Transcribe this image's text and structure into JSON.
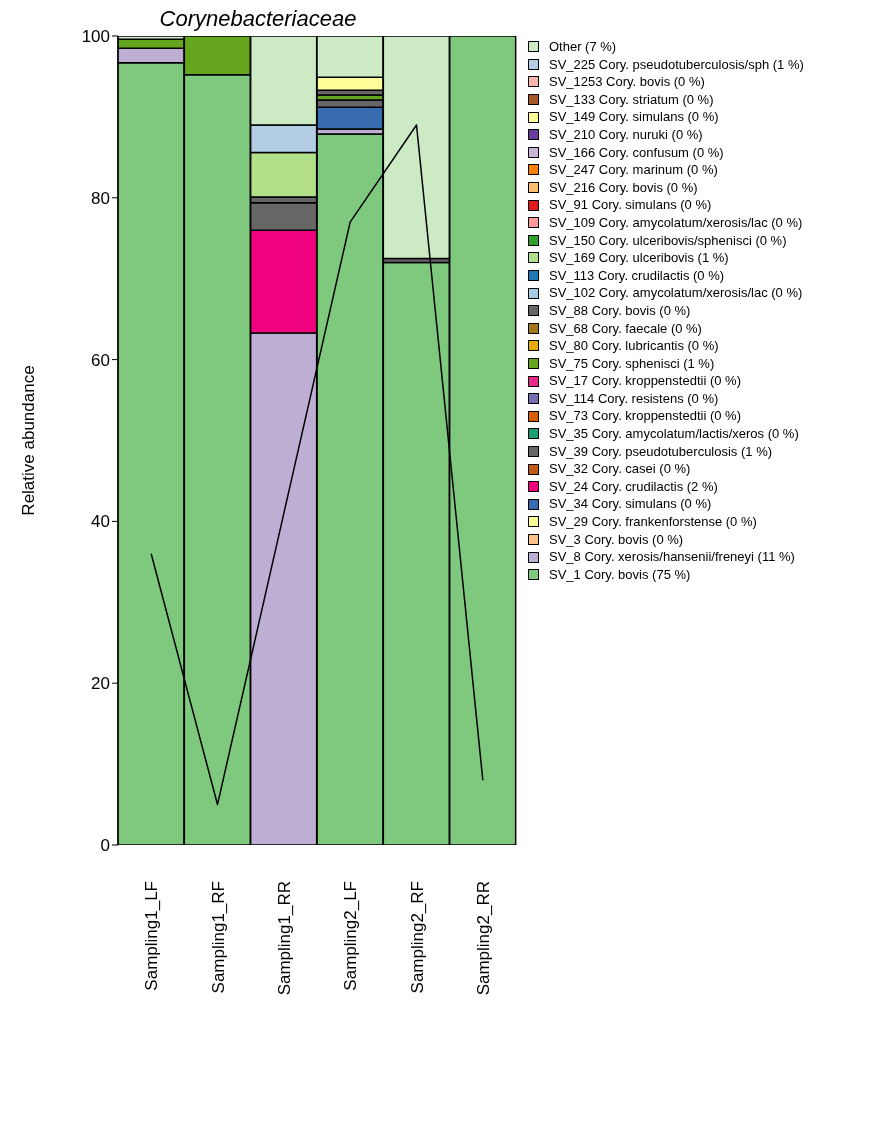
{
  "chart_data": {
    "type": "bar",
    "stacked": true,
    "title": "Corynebacteriaceae",
    "ylabel": "Relative abundance",
    "categories": [
      "Sampling1_LF",
      "Sampling1_RF",
      "Sampling1_RR",
      "Sampling2_LF",
      "Sampling2_RF",
      "Sampling2_RR"
    ],
    "ylim": [
      0,
      100
    ],
    "yticks": [
      0,
      20,
      40,
      60,
      80,
      100
    ],
    "grid": false,
    "legend": "top right",
    "series": [
      {
        "name": "SV_1 Cory. bovis (75 %)",
        "color": "#7fc97f",
        "values": [
          96.7,
          95.2,
          0,
          87.9,
          72.0,
          100
        ]
      },
      {
        "name": "SV_8 Cory. xerosis/hansenii/freneyi (11 %)",
        "color": "#beaed4",
        "values": [
          1.8,
          0,
          63.3,
          0.6,
          0,
          0
        ]
      },
      {
        "name": "SV_3 Cory. bovis (0 %)",
        "color": "#fdc086",
        "values": [
          0,
          0,
          0,
          0,
          0,
          0
        ]
      },
      {
        "name": "SV_29 Cory. frankenforstense (0 %)",
        "color": "#ffff99",
        "values": [
          0,
          0,
          0,
          0,
          0,
          0
        ]
      },
      {
        "name": "SV_34 Cory. simulans (0 %)",
        "color": "#386cb0",
        "values": [
          0,
          0,
          0,
          2.7,
          0,
          0
        ]
      },
      {
        "name": "SV_24 Cory. crudilactis (2 %)",
        "color": "#f0027f",
        "values": [
          0,
          0,
          12.7,
          0,
          0,
          0
        ]
      },
      {
        "name": "SV_32 Cory. casei (0 %)",
        "color": "#bf5b17",
        "values": [
          0,
          0,
          0,
          0,
          0,
          0
        ]
      },
      {
        "name": "SV_39 Cory. pseudotuberculosis (1 %)",
        "color": "#666666",
        "values": [
          0,
          0,
          3.4,
          0.9,
          0.5,
          0
        ]
      },
      {
        "name": "SV_35 Cory. amycolatum/lactis/xeros (0 %)",
        "color": "#1b9e77",
        "values": [
          0,
          0,
          0,
          0,
          0,
          0
        ]
      },
      {
        "name": "SV_73 Cory. kroppenstedtii (0 %)",
        "color": "#d95f02",
        "values": [
          0,
          0,
          0,
          0,
          0,
          0
        ]
      },
      {
        "name": "SV_114 Cory. resistens (0 %)",
        "color": "#7570b3",
        "values": [
          0,
          0,
          0,
          0,
          0,
          0
        ]
      },
      {
        "name": "SV_17 Cory. kroppenstedtii (0 %)",
        "color": "#e7298a",
        "values": [
          0,
          0,
          0,
          0,
          0,
          0
        ]
      },
      {
        "name": "SV_75 Cory. sphenisci (1 %)",
        "color": "#66a61e",
        "values": [
          1.1,
          4.8,
          0,
          0.6,
          0,
          0
        ]
      },
      {
        "name": "SV_80 Cory. lubricantis (0 %)",
        "color": "#e6ab02",
        "values": [
          0,
          0,
          0,
          0,
          0,
          0
        ]
      },
      {
        "name": "SV_68 Cory. faecale (0 %)",
        "color": "#a6761d",
        "values": [
          0,
          0,
          0,
          0,
          0,
          0
        ]
      },
      {
        "name": "SV_88 Cory. bovis (0 %)",
        "color": "#666666",
        "values": [
          0,
          0,
          0.7,
          0.6,
          0,
          0
        ]
      },
      {
        "name": "SV_102 Cory. amycolatum/xerosis/lac (0 %)",
        "color": "#a6cee3",
        "values": [
          0,
          0,
          0,
          0,
          0,
          0
        ]
      },
      {
        "name": "SV_113 Cory. crudilactis (0 %)",
        "color": "#1f78b4",
        "values": [
          0,
          0,
          0,
          0,
          0,
          0
        ]
      },
      {
        "name": "SV_169 Cory. ulceribovis (1 %)",
        "color": "#b2df8a",
        "values": [
          0,
          0,
          5.5,
          0,
          0,
          0
        ]
      },
      {
        "name": "SV_150 Cory. ulceribovis/sphenisci (0 %)",
        "color": "#33a02c",
        "values": [
          0,
          0,
          0,
          0,
          0,
          0
        ]
      },
      {
        "name": "SV_109 Cory. amycolatum/xerosis/lac (0 %)",
        "color": "#fb9a99",
        "values": [
          0,
          0,
          0,
          0,
          0,
          0
        ]
      },
      {
        "name": "SV_91 Cory. simulans (0 %)",
        "color": "#e31a1c",
        "values": [
          0,
          0,
          0,
          0,
          0,
          0
        ]
      },
      {
        "name": "SV_216 Cory. bovis (0 %)",
        "color": "#fdbf6f",
        "values": [
          0,
          0,
          0,
          0,
          0,
          0
        ]
      },
      {
        "name": "SV_247 Cory. marinum (0 %)",
        "color": "#ff7f00",
        "values": [
          0,
          0,
          0,
          0,
          0,
          0
        ]
      },
      {
        "name": "SV_166 Cory. confusum (0 %)",
        "color": "#cab2d6",
        "values": [
          0,
          0,
          0,
          0,
          0,
          0
        ]
      },
      {
        "name": "SV_210 Cory. nuruki (0 %)",
        "color": "#6a3d9a",
        "values": [
          0,
          0,
          0,
          0,
          0,
          0
        ]
      },
      {
        "name": "SV_149 Cory. simulans (0 %)",
        "color": "#ffff99",
        "values": [
          0,
          0,
          0,
          1.6,
          0,
          0
        ]
      },
      {
        "name": "SV_133 Cory. striatum (0 %)",
        "color": "#a65628",
        "values": [
          0,
          0,
          0,
          0,
          0,
          0
        ]
      },
      {
        "name": "SV_1253 Cory. bovis (0 %)",
        "color": "#fbb4ae",
        "values": [
          0,
          0,
          0,
          0,
          0,
          0
        ]
      },
      {
        "name": "SV_225 Cory. pseudotuberculosis/sph (1 %)",
        "color": "#b3cde3",
        "values": [
          0,
          0,
          3.4,
          0,
          0,
          0
        ]
      },
      {
        "name": "Other (7 %)",
        "color": "#ccebc5",
        "values": [
          0.4,
          0,
          11.0,
          5.1,
          27.5,
          0
        ]
      },
      {
        "type": "line",
        "color": "#000000",
        "values": [
          36,
          5,
          41,
          77,
          89,
          8
        ]
      }
    ]
  }
}
